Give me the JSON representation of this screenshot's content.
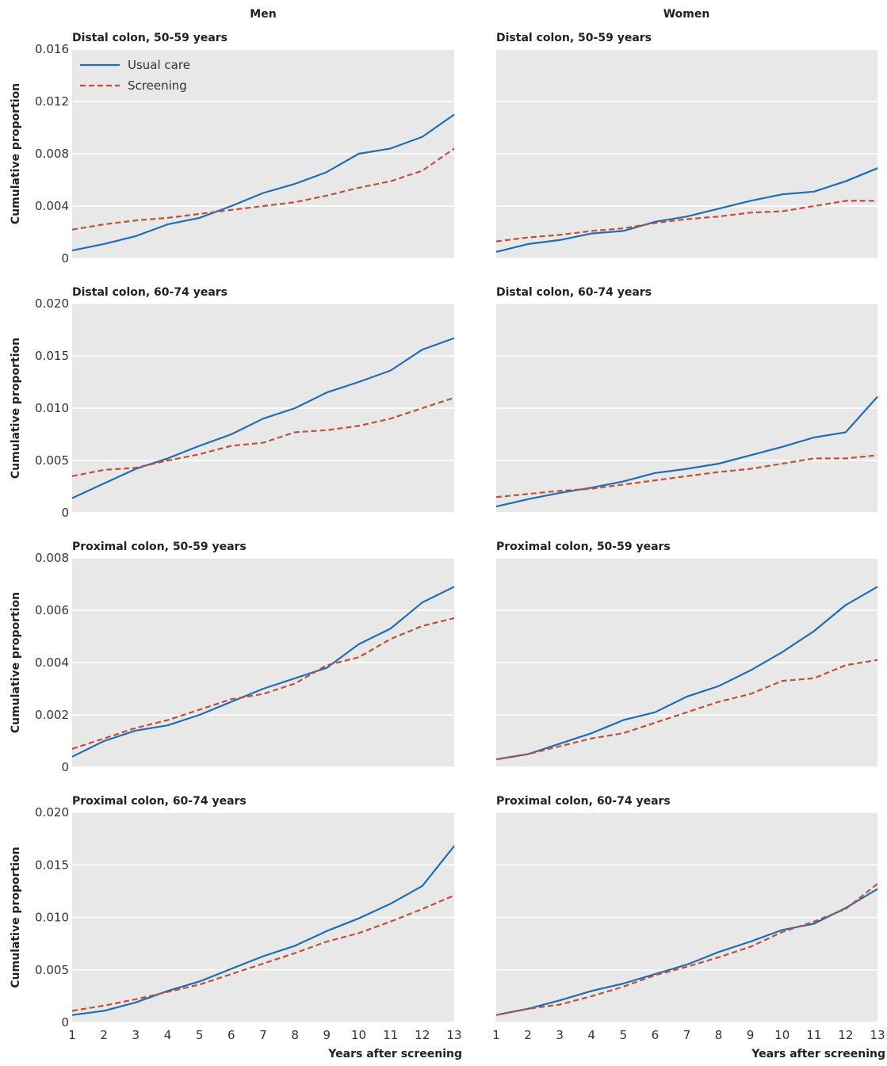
{
  "column_titles": [
    "Men",
    "Women"
  ],
  "legend": {
    "usual_care": "Usual care",
    "screening": "Screening"
  },
  "colors": {
    "usual_care": "#1f6db4",
    "screening": "#c0503a",
    "panel_bg": "#e8e8e9",
    "grid": "#ffffff"
  },
  "ylabel": "Cumulative proportion",
  "xlabel": "Years after screening",
  "chart_data": [
    {
      "type": "line",
      "title": "Distal colon, 50-59 years",
      "column": "Men",
      "x": [
        1,
        2,
        3,
        4,
        5,
        6,
        7,
        8,
        9,
        10,
        11,
        12,
        13
      ],
      "ylim": [
        0,
        0.016
      ],
      "yticks": [
        "0",
        "0.004",
        "0.008",
        "0.012",
        "0.016"
      ],
      "ytick_values": [
        0,
        0.004,
        0.008,
        0.012,
        0.016
      ],
      "show_ylabel": true,
      "show_xticks": false,
      "legend": "top-left",
      "series": [
        {
          "name": "Usual care",
          "values": [
            0.0006,
            0.0011,
            0.0017,
            0.0026,
            0.0031,
            0.004,
            0.005,
            0.0057,
            0.0066,
            0.008,
            0.0084,
            0.0093,
            0.011
          ]
        },
        {
          "name": "Screening",
          "values": [
            0.0022,
            0.0026,
            0.0029,
            0.0031,
            0.0034,
            0.0037,
            0.004,
            0.0043,
            0.0048,
            0.0054,
            0.0059,
            0.0067,
            0.0084
          ]
        }
      ]
    },
    {
      "type": "line",
      "title": "Distal colon, 50-59 years",
      "column": "Women",
      "x": [
        1,
        2,
        3,
        4,
        5,
        6,
        7,
        8,
        9,
        10,
        11,
        12,
        13
      ],
      "ylim": [
        0,
        0.016
      ],
      "yticks": [],
      "ytick_values": [
        0,
        0.004,
        0.008,
        0.012,
        0.016
      ],
      "show_ylabel": false,
      "show_xticks": false,
      "series": [
        {
          "name": "Usual care",
          "values": [
            0.0005,
            0.0011,
            0.0014,
            0.0019,
            0.0021,
            0.0028,
            0.0032,
            0.0038,
            0.0044,
            0.0049,
            0.0051,
            0.0059,
            0.0069
          ]
        },
        {
          "name": "Screening",
          "values": [
            0.0013,
            0.0016,
            0.0018,
            0.0021,
            0.0023,
            0.0027,
            0.003,
            0.0032,
            0.0035,
            0.0036,
            0.004,
            0.0044,
            0.0044
          ]
        }
      ]
    },
    {
      "type": "line",
      "title": "Distal colon, 60-74 years",
      "column": "Men",
      "x": [
        1,
        2,
        3,
        4,
        5,
        6,
        7,
        8,
        9,
        10,
        11,
        12,
        13
      ],
      "ylim": [
        0,
        0.02
      ],
      "yticks": [
        "0",
        "0.005",
        "0.010",
        "0.015",
        "0.020"
      ],
      "ytick_values": [
        0,
        0.005,
        0.01,
        0.015,
        0.02
      ],
      "show_ylabel": true,
      "show_xticks": false,
      "series": [
        {
          "name": "Usual care",
          "values": [
            0.0014,
            0.0028,
            0.0042,
            0.0052,
            0.0064,
            0.0075,
            0.009,
            0.01,
            0.0115,
            0.0125,
            0.0136,
            0.0156,
            0.0167
          ]
        },
        {
          "name": "Screening",
          "values": [
            0.0035,
            0.0041,
            0.0043,
            0.005,
            0.0056,
            0.0064,
            0.0067,
            0.0077,
            0.0079,
            0.0083,
            0.009,
            0.01,
            0.011
          ]
        }
      ]
    },
    {
      "type": "line",
      "title": "Distal colon, 60-74 years",
      "column": "Women",
      "x": [
        1,
        2,
        3,
        4,
        5,
        6,
        7,
        8,
        9,
        10,
        11,
        12,
        13
      ],
      "ylim": [
        0,
        0.02
      ],
      "yticks": [],
      "ytick_values": [
        0,
        0.005,
        0.01,
        0.015,
        0.02
      ],
      "show_ylabel": false,
      "show_xticks": false,
      "series": [
        {
          "name": "Usual care",
          "values": [
            0.0006,
            0.0013,
            0.0019,
            0.0024,
            0.003,
            0.0038,
            0.0042,
            0.0047,
            0.0055,
            0.0063,
            0.0072,
            0.0077,
            0.0111
          ]
        },
        {
          "name": "Screening",
          "values": [
            0.0015,
            0.0018,
            0.0021,
            0.0023,
            0.0027,
            0.0031,
            0.0035,
            0.0039,
            0.0042,
            0.0047,
            0.0052,
            0.0052,
            0.0055
          ]
        }
      ]
    },
    {
      "type": "line",
      "title": "Proximal colon, 50-59 years",
      "column": "Men",
      "x": [
        1,
        2,
        3,
        4,
        5,
        6,
        7,
        8,
        9,
        10,
        11,
        12,
        13
      ],
      "ylim": [
        0,
        0.008
      ],
      "yticks": [
        "0",
        "0.002",
        "0.004",
        "0.006",
        "0.008"
      ],
      "ytick_values": [
        0,
        0.002,
        0.004,
        0.006,
        0.008
      ],
      "show_ylabel": true,
      "show_xticks": false,
      "series": [
        {
          "name": "Usual care",
          "values": [
            0.0004,
            0.001,
            0.0014,
            0.0016,
            0.002,
            0.0025,
            0.003,
            0.0034,
            0.0038,
            0.0047,
            0.0053,
            0.0063,
            0.0069
          ]
        },
        {
          "name": "Screening",
          "values": [
            0.0007,
            0.0011,
            0.0015,
            0.0018,
            0.0022,
            0.0026,
            0.0028,
            0.0032,
            0.0039,
            0.0042,
            0.0049,
            0.0054,
            0.0057
          ]
        }
      ]
    },
    {
      "type": "line",
      "title": "Proximal colon, 50-59 years",
      "column": "Women",
      "x": [
        1,
        2,
        3,
        4,
        5,
        6,
        7,
        8,
        9,
        10,
        11,
        12,
        13
      ],
      "ylim": [
        0,
        0.008
      ],
      "yticks": [],
      "ytick_values": [
        0,
        0.002,
        0.004,
        0.006,
        0.008
      ],
      "show_ylabel": false,
      "show_xticks": false,
      "series": [
        {
          "name": "Usual care",
          "values": [
            0.0003,
            0.0005,
            0.0009,
            0.0013,
            0.0018,
            0.0021,
            0.0027,
            0.0031,
            0.0037,
            0.0044,
            0.0052,
            0.0062,
            0.0069
          ]
        },
        {
          "name": "Screening",
          "values": [
            0.0003,
            0.0005,
            0.0008,
            0.0011,
            0.0013,
            0.0017,
            0.0021,
            0.0025,
            0.0028,
            0.0033,
            0.0034,
            0.0039,
            0.0041
          ]
        }
      ]
    },
    {
      "type": "line",
      "title": "Proximal colon, 60-74 years",
      "column": "Men",
      "x": [
        1,
        2,
        3,
        4,
        5,
        6,
        7,
        8,
        9,
        10,
        11,
        12,
        13
      ],
      "ylim": [
        0,
        0.02
      ],
      "yticks": [
        "0",
        "0.005",
        "0.010",
        "0.015",
        "0.020"
      ],
      "ytick_values": [
        0,
        0.005,
        0.01,
        0.015,
        0.02
      ],
      "show_ylabel": true,
      "show_xticks": true,
      "xticks": [
        "1",
        "2",
        "3",
        "4",
        "5",
        "6",
        "7",
        "8",
        "9",
        "10",
        "11",
        "12",
        "13"
      ],
      "series": [
        {
          "name": "Usual care",
          "values": [
            0.0007,
            0.0011,
            0.0019,
            0.003,
            0.0039,
            0.0051,
            0.0063,
            0.0073,
            0.0087,
            0.0099,
            0.0113,
            0.013,
            0.0168
          ]
        },
        {
          "name": "Screening",
          "values": [
            0.0011,
            0.0016,
            0.0022,
            0.0029,
            0.0036,
            0.0046,
            0.0056,
            0.0066,
            0.0077,
            0.0085,
            0.0096,
            0.0108,
            0.0121
          ]
        }
      ]
    },
    {
      "type": "line",
      "title": "Proximal colon, 60-74 years",
      "column": "Women",
      "x": [
        1,
        2,
        3,
        4,
        5,
        6,
        7,
        8,
        9,
        10,
        11,
        12,
        13
      ],
      "ylim": [
        0,
        0.02
      ],
      "yticks": [],
      "ytick_values": [
        0,
        0.005,
        0.01,
        0.015,
        0.02
      ],
      "show_ylabel": false,
      "show_xticks": true,
      "xticks": [
        "1",
        "2",
        "3",
        "4",
        "5",
        "6",
        "7",
        "8",
        "9",
        "10",
        "11",
        "12",
        "13"
      ],
      "series": [
        {
          "name": "Usual care",
          "values": [
            0.0007,
            0.0013,
            0.0021,
            0.003,
            0.0037,
            0.0046,
            0.0055,
            0.0067,
            0.0077,
            0.0088,
            0.0094,
            0.0109,
            0.0127
          ]
        },
        {
          "name": "Screening",
          "values": [
            0.0007,
            0.0013,
            0.0017,
            0.0025,
            0.0034,
            0.0045,
            0.0053,
            0.0062,
            0.0072,
            0.0086,
            0.0096,
            0.0108,
            0.0132
          ]
        }
      ]
    }
  ]
}
